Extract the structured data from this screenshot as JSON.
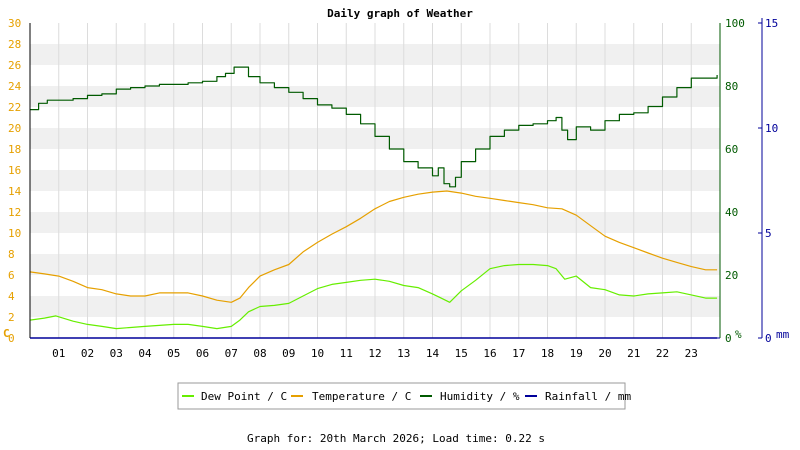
{
  "chart_data": {
    "type": "line",
    "title": "Daily graph of Weather",
    "x_ticks": [
      "01",
      "02",
      "03",
      "04",
      "05",
      "06",
      "07",
      "08",
      "09",
      "10",
      "11",
      "12",
      "13",
      "14",
      "15",
      "16",
      "17",
      "18",
      "19",
      "20",
      "21",
      "22",
      "23"
    ],
    "xlim": [
      0,
      24
    ],
    "axes": {
      "left": {
        "unit": "C",
        "ylim": [
          0,
          30
        ],
        "ticks": [
          0,
          2,
          4,
          6,
          8,
          10,
          12,
          14,
          16,
          18,
          20,
          22,
          24,
          26,
          28,
          30
        ],
        "color": "#e6a000"
      },
      "humidity": {
        "unit": "%",
        "ylim": [
          0,
          100
        ],
        "ticks": [
          0,
          20,
          40,
          60,
          80,
          100
        ],
        "color": "#005a00"
      },
      "rain": {
        "unit": "mm",
        "ylim": [
          0,
          15
        ],
        "ticks": [
          0,
          5,
          10,
          15
        ],
        "color": "#00009a"
      }
    },
    "grid": true,
    "legend_position": "bottom",
    "series": [
      {
        "name": "Dew Point / C",
        "axis": "left",
        "color": "#66ee00",
        "x": [
          0,
          0.5,
          0.9,
          1.5,
          2,
          2.5,
          3,
          3.5,
          4,
          4.5,
          5,
          5.5,
          6,
          6.5,
          7,
          7.3,
          7.6,
          8,
          8.5,
          9,
          9.5,
          10,
          10.5,
          11,
          11.5,
          12,
          12.5,
          13,
          13.5,
          14,
          14.3,
          14.6,
          15,
          15.5,
          16,
          16.5,
          17,
          17.5,
          18,
          18.3,
          18.6,
          19,
          19.5,
          20,
          20.5,
          21,
          21.5,
          22,
          22.5,
          23,
          23.5,
          23.9
        ],
        "y": [
          1.7,
          1.9,
          2.1,
          1.6,
          1.3,
          1.1,
          0.9,
          1.0,
          1.1,
          1.2,
          1.3,
          1.3,
          1.1,
          0.9,
          1.1,
          1.7,
          2.5,
          3.0,
          3.1,
          3.3,
          4.0,
          4.7,
          5.1,
          5.3,
          5.5,
          5.6,
          5.4,
          5.0,
          4.8,
          4.2,
          3.8,
          3.4,
          4.5,
          5.5,
          6.6,
          6.9,
          7.0,
          7.0,
          6.9,
          6.6,
          5.6,
          5.9,
          4.8,
          4.6,
          4.1,
          4.0,
          4.2,
          4.3,
          4.4,
          4.1,
          3.8,
          3.8
        ]
      },
      {
        "name": "Temperature / C",
        "axis": "left",
        "color": "#e6a000",
        "x": [
          0,
          0.5,
          1,
          1.5,
          2,
          2.5,
          3,
          3.5,
          4,
          4.5,
          5,
          5.5,
          6,
          6.5,
          7,
          7.3,
          7.6,
          8,
          8.5,
          9,
          9.5,
          10,
          10.5,
          11,
          11.5,
          12,
          12.5,
          13,
          13.5,
          14,
          14.5,
          15,
          15.5,
          16,
          16.5,
          17,
          17.5,
          18,
          18.5,
          19,
          19.5,
          20,
          20.5,
          21,
          21.5,
          22,
          22.5,
          23,
          23.5,
          23.9
        ],
        "y": [
          6.3,
          6.1,
          5.9,
          5.4,
          4.8,
          4.6,
          4.2,
          4.0,
          4.0,
          4.3,
          4.3,
          4.3,
          4.0,
          3.6,
          3.4,
          3.8,
          4.8,
          5.9,
          6.5,
          7.0,
          8.2,
          9.1,
          9.9,
          10.6,
          11.4,
          12.3,
          13.0,
          13.4,
          13.7,
          13.9,
          14.0,
          13.8,
          13.5,
          13.3,
          13.1,
          12.9,
          12.7,
          12.4,
          12.3,
          11.7,
          10.7,
          9.7,
          9.1,
          8.6,
          8.1,
          7.6,
          7.2,
          6.8,
          6.5,
          6.5
        ]
      },
      {
        "name": "Humidity / %",
        "axis": "humidity",
        "color": "#005a00",
        "x": [
          0,
          0.3,
          0.6,
          1,
          1.5,
          2,
          2.5,
          3,
          3.5,
          4,
          4.5,
          5,
          5.5,
          6,
          6.5,
          6.8,
          7.1,
          7.3,
          7.6,
          8,
          8.5,
          9,
          9.5,
          10,
          10.5,
          11,
          11.5,
          12,
          12.5,
          13,
          13.5,
          14,
          14.2,
          14.4,
          14.6,
          14.8,
          15,
          15.5,
          16,
          16.5,
          17,
          17.5,
          18,
          18.3,
          18.5,
          18.7,
          19,
          19.5,
          20,
          20.5,
          21,
          21.5,
          22,
          22.5,
          23,
          23.9
        ],
        "y": [
          72.5,
          74.5,
          75.5,
          75.5,
          76,
          77,
          77.5,
          79,
          79.5,
          80,
          80.5,
          80.5,
          81,
          81.5,
          83,
          84,
          86,
          86,
          83,
          81,
          79.5,
          78,
          76,
          74,
          73,
          71,
          68,
          64,
          60,
          56,
          54,
          51.5,
          54,
          49,
          48,
          51,
          56,
          60,
          64,
          66,
          67.5,
          68,
          69,
          70,
          66,
          63,
          67,
          66,
          69,
          71,
          71.5,
          73.5,
          76.5,
          79.5,
          82.5,
          83.5
        ]
      },
      {
        "name": "Rainfall / mm",
        "axis": "rain",
        "color": "#00009a",
        "x": [
          0,
          23.9
        ],
        "y": [
          0,
          0
        ]
      }
    ],
    "footer": "Graph for: 20th March 2026; Load time: 0.22 s"
  }
}
